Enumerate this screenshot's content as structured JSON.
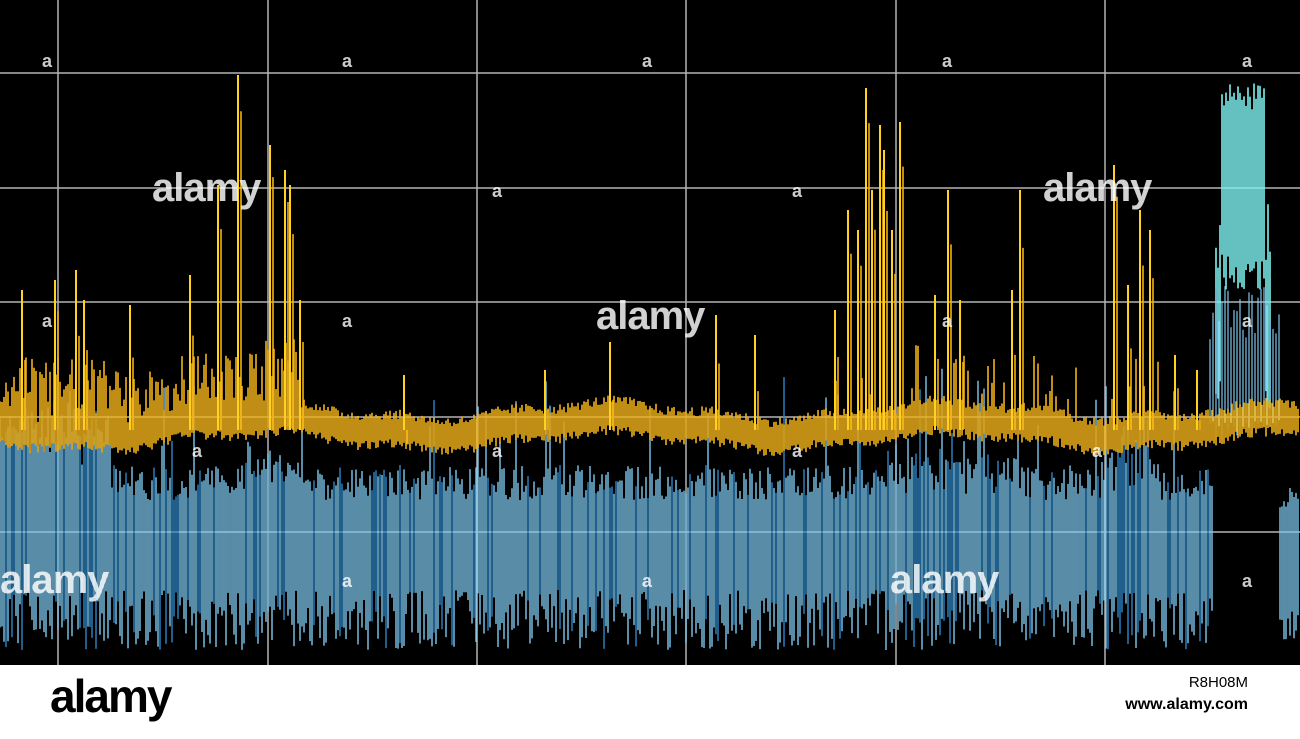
{
  "image": {
    "subject": "spectrum analyzer display",
    "colors": {
      "background": "#000000",
      "grid": "#b4b4b4",
      "trace_upper": "#f0b21a",
      "trace_upper_peak": "#ffd21e",
      "trace_lower": "#7fc8ee",
      "trace_lower_dark": "#2f86c8",
      "trace_burst": "#7ff0f0"
    }
  },
  "watermark": {
    "word": "alamy",
    "mark": "a"
  },
  "footer": {
    "logo": "alamy",
    "image_id": "R8H08M",
    "url": "www.alamy.com"
  }
}
